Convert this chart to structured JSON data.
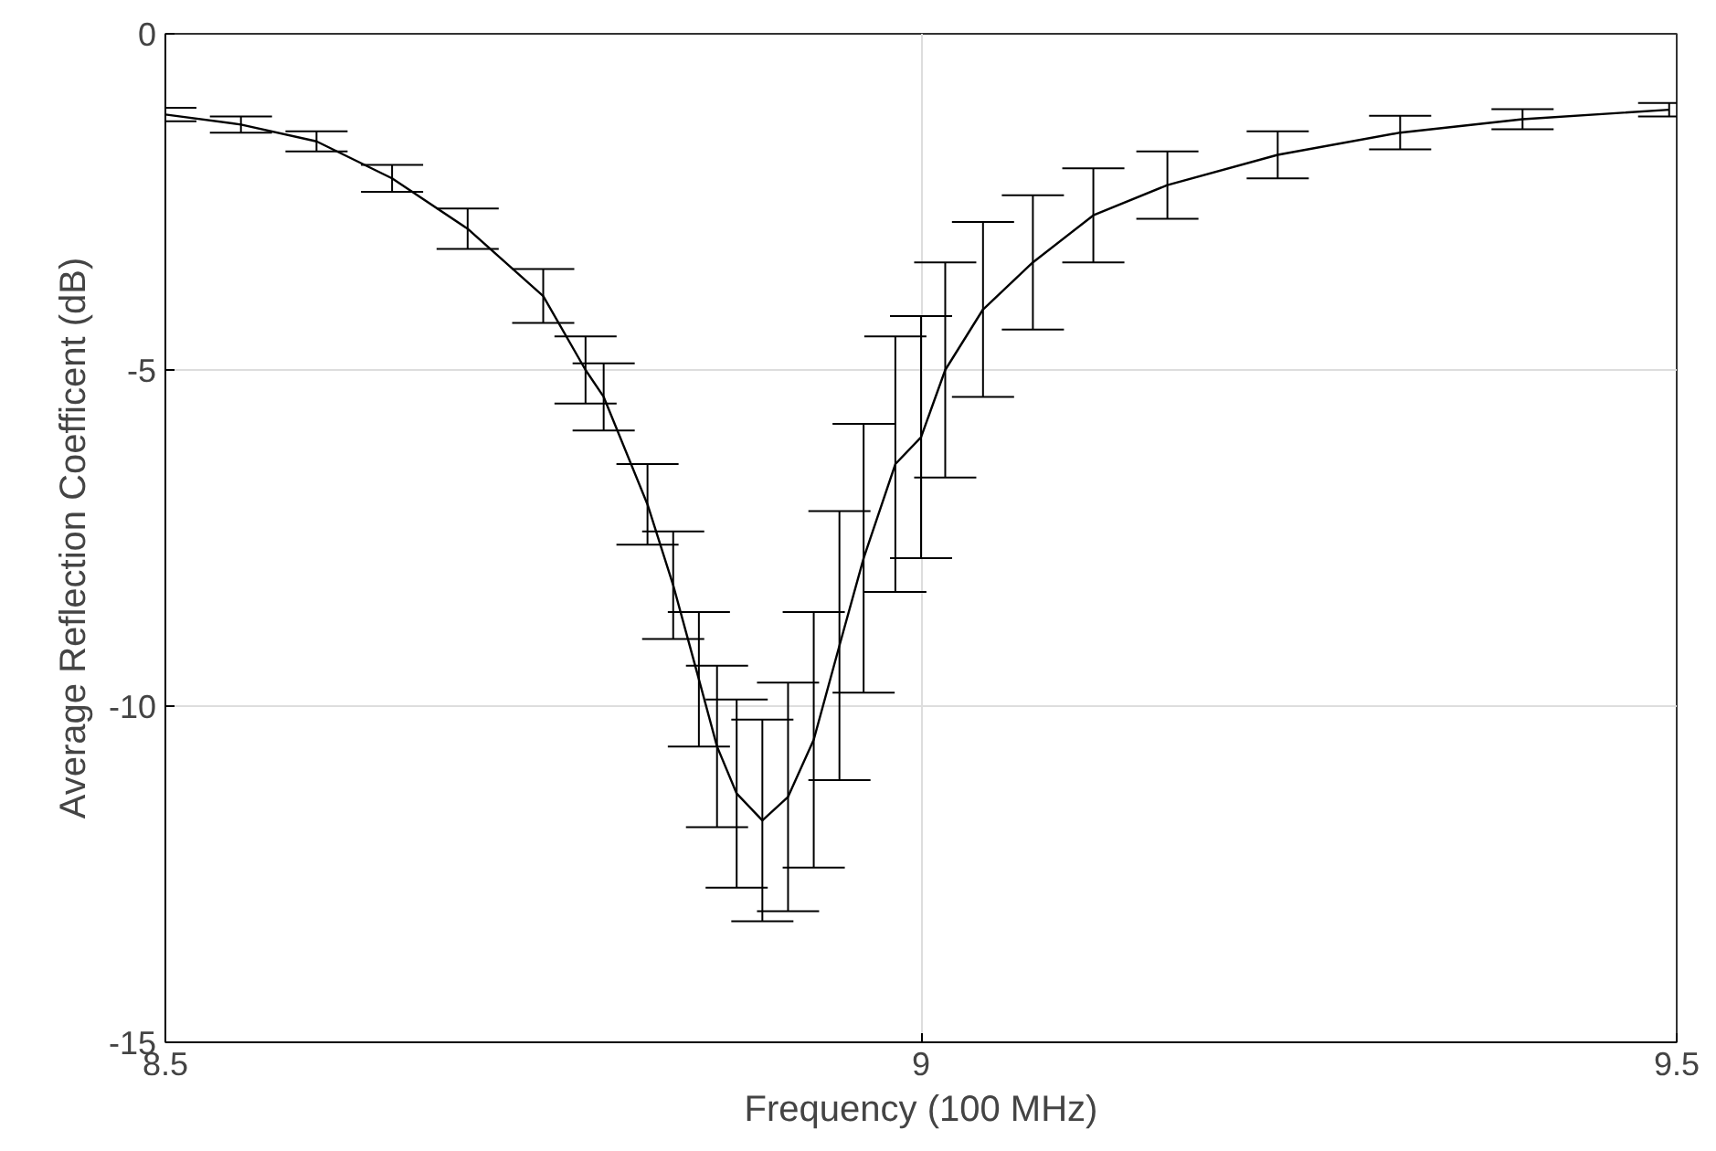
{
  "chart_data": {
    "type": "line",
    "xlabel": "Frequency (100 MHz)",
    "ylabel": "Average Reflection Coefficent (dB)",
    "x": [
      8.5,
      8.55,
      8.6,
      8.65,
      8.7,
      8.75,
      8.778,
      8.79,
      8.819,
      8.836,
      8.853,
      8.865,
      8.878,
      8.895,
      8.912,
      8.929,
      8.946,
      8.962,
      8.983,
      9.0,
      9.016,
      9.041,
      9.074,
      9.114,
      9.163,
      9.236,
      9.317,
      9.398,
      9.495
    ],
    "series": [
      {
        "color": "#000000",
        "values": [
          -1.2,
          -1.35,
          -1.6,
          -2.15,
          -2.9,
          -3.9,
          -5.0,
          -5.4,
          -7.0,
          -8.2,
          -9.6,
          -10.6,
          -11.3,
          -11.7,
          -11.35,
          -10.5,
          -9.1,
          -7.8,
          -6.4,
          -6.0,
          -5.0,
          -4.1,
          -3.4,
          -2.7,
          -2.25,
          -1.8,
          -1.47,
          -1.27,
          -1.13
        ],
        "errors": [
          0.1,
          0.12,
          0.15,
          0.2,
          0.3,
          0.4,
          0.5,
          0.5,
          0.6,
          0.8,
          1.0,
          1.2,
          1.4,
          1.5,
          1.7,
          1.9,
          2.0,
          2.0,
          1.9,
          1.8,
          1.6,
          1.3,
          1.0,
          0.7,
          0.5,
          0.35,
          0.25,
          0.15,
          0.1
        ]
      }
    ],
    "xlim": [
      8.5,
      9.5
    ],
    "xticks": [
      8.5,
      9,
      9.5
    ],
    "ylim": [
      -15,
      0
    ],
    "yticks": [
      -15,
      -10,
      -5,
      0
    ],
    "grid": true,
    "marker": "none",
    "line_style": "solid"
  }
}
